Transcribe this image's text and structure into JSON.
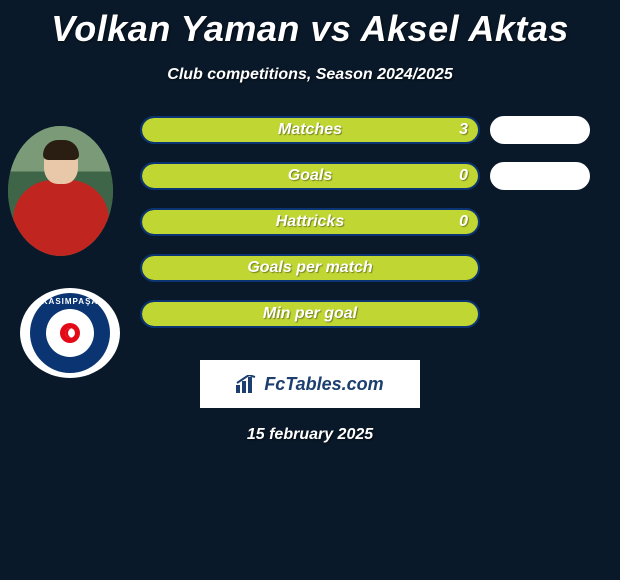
{
  "title": "Volkan Yaman vs Aksel Aktas",
  "subtitle": "Club competitions, Season 2024/2025",
  "date": "15 february 2025",
  "brand": "FcTables.com",
  "left_bar_width": 340,
  "left_bar_border": "#0a3572",
  "left_bar_fill": "#c0d633",
  "stats": [
    {
      "label": "Matches",
      "value": "3",
      "left_fill_pct": 100,
      "right_width": 100,
      "right_show": true
    },
    {
      "label": "Goals",
      "value": "0",
      "left_fill_pct": 100,
      "right_width": 100,
      "right_show": true
    },
    {
      "label": "Hattricks",
      "value": "0",
      "left_fill_pct": 100,
      "right_width": 0,
      "right_show": false
    },
    {
      "label": "Goals per match",
      "value": "",
      "left_fill_pct": 100,
      "right_width": 0,
      "right_show": false
    },
    {
      "label": "Min per goal",
      "value": "",
      "left_fill_pct": 100,
      "right_width": 0,
      "right_show": false
    }
  ],
  "club_name": "KASIMPAŞA",
  "player_photo": {
    "shirt_color": "#c0261f"
  }
}
